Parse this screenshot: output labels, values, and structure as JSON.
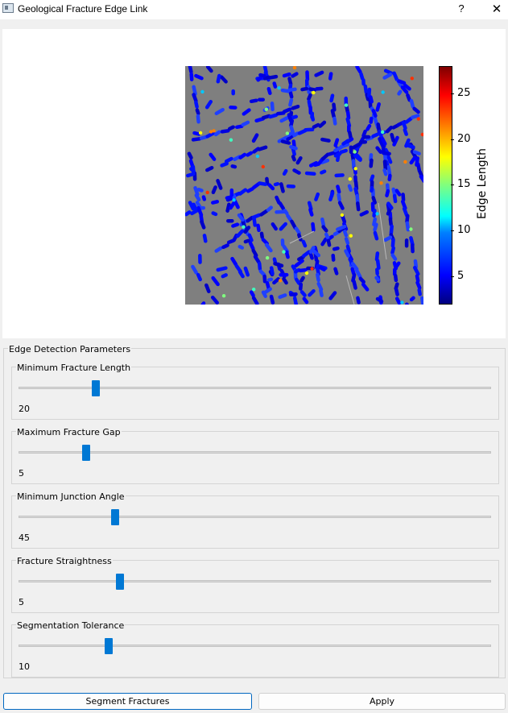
{
  "window": {
    "title": "Geological Fracture Edge Link",
    "help_label": "?",
    "close_label": "✕"
  },
  "plot": {
    "colorbar": {
      "label": "Edge Length",
      "ticks": [
        "25",
        "20",
        "15",
        "10",
        "5"
      ],
      "range": [
        2,
        28
      ],
      "colormap": "jet"
    },
    "background_color": "#7f7f7f"
  },
  "parameters": {
    "group_title": "Edge Detection Parameters",
    "sliders": [
      {
        "label": "Minimum Fracture Length",
        "value": "20",
        "fraction": 0.163
      },
      {
        "label": "Maximum Fracture Gap",
        "value": "5",
        "fraction": 0.143
      },
      {
        "label": "Minimum Junction Angle",
        "value": "45",
        "fraction": 0.204
      },
      {
        "label": "Fracture Straightness",
        "value": "5",
        "fraction": 0.214
      },
      {
        "label": "Segmentation Tolerance",
        "value": "10",
        "fraction": 0.19
      }
    ]
  },
  "buttons": {
    "segment_label": "Segment Fractures",
    "apply_label": "Apply"
  },
  "colors": {
    "accent": "#0078d4",
    "focus_border": "#0067c0"
  }
}
